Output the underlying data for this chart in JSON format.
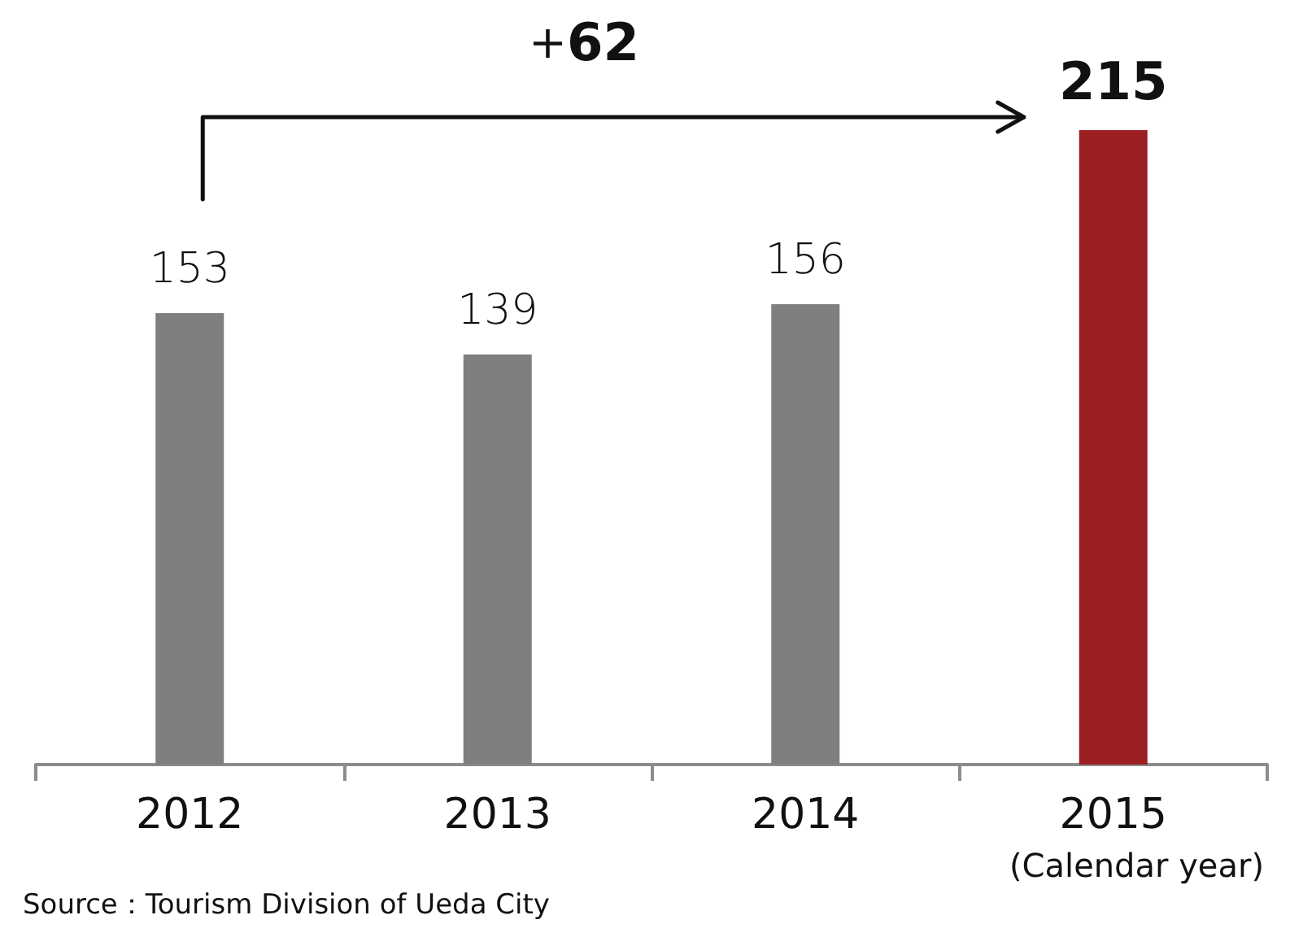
{
  "chart_data": {
    "type": "bar",
    "categories": [
      "2012",
      "2013",
      "2014",
      "2015"
    ],
    "values": [
      153,
      139,
      156,
      215
    ],
    "colors": [
      "#7f7f7f",
      "#7f7f7f",
      "#7f7f7f",
      "#9b1e23"
    ],
    "data_labels": true,
    "annotations": [
      "+62",
      "(Calendar year)",
      "Source：Tourism Division of Ueda City"
    ]
  }
}
